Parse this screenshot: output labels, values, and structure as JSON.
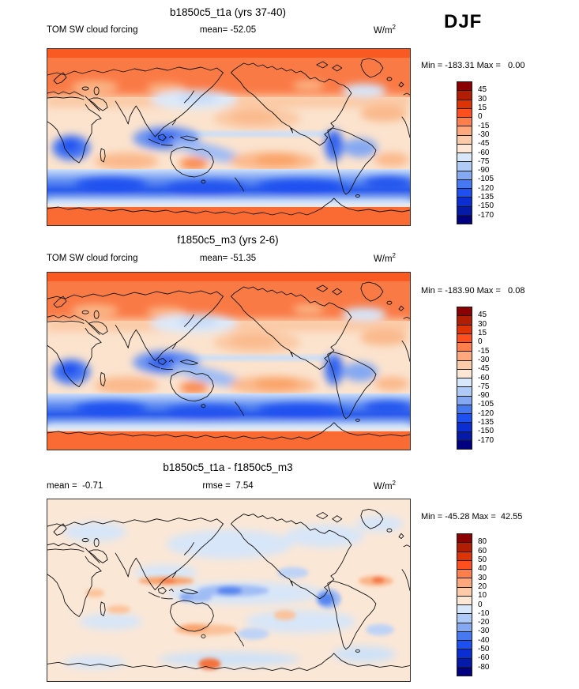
{
  "season": {
    "label": "DJF"
  },
  "palette": [
    "#8B0000",
    "#B21E04",
    "#DD3305",
    "#FF4F1E",
    "#FF7F4C",
    "#FFA87E",
    "#FECBAA",
    "#FEE8D5",
    "#D8E7FA",
    "#B0CAF8",
    "#84A8F2",
    "#4678F2",
    "#1E4FF0",
    "#0A2ED2",
    "#051AA8",
    "#000080"
  ],
  "chart_data": [
    {
      "type": "heatmap",
      "panel": "top",
      "title": "b1850c5_t1a (yrs 37-40)",
      "left_label": "TOM SW cloud forcing",
      "center_label": "mean= -52.05",
      "mean": -52.05,
      "units_base": "W/m",
      "units_exp": "2",
      "minmax_label": "Min = -183.31 Max =   0.00",
      "min": -183.31,
      "max": 0.0,
      "colorbar_levels": [
        45,
        30,
        15,
        0,
        -15,
        -30,
        -45,
        -60,
        -75,
        -90,
        -105,
        -120,
        -135,
        -150,
        -170
      ],
      "legend_position": "right"
    },
    {
      "type": "heatmap",
      "panel": "middle",
      "title": "f1850c5_m3 (yrs 2-6)",
      "left_label": "TOM SW cloud forcing",
      "center_label": "mean= -51.35",
      "mean": -51.35,
      "units_base": "W/m",
      "units_exp": "2",
      "minmax_label": "Min = -183.90 Max =   0.08",
      "min": -183.9,
      "max": 0.08,
      "colorbar_levels": [
        45,
        30,
        15,
        0,
        -15,
        -30,
        -45,
        -60,
        -75,
        -90,
        -105,
        -120,
        -135,
        -150,
        -170
      ],
      "legend_position": "right"
    },
    {
      "type": "heatmap",
      "panel": "bottom",
      "title": "b1850c5_t1a - f1850c5_m3",
      "left_label": "mean =  -0.71",
      "center_label": "rmse =  7.54",
      "mean": -0.71,
      "rmse": 7.54,
      "units_base": "W/m",
      "units_exp": "2",
      "minmax_label": "Min = -45.28 Max =  42.55",
      "min": -45.28,
      "max": 42.55,
      "colorbar_levels": [
        80,
        60,
        50,
        40,
        30,
        20,
        10,
        0,
        -10,
        -20,
        -30,
        -40,
        -50,
        -60,
        -80
      ],
      "legend_position": "right"
    }
  ]
}
